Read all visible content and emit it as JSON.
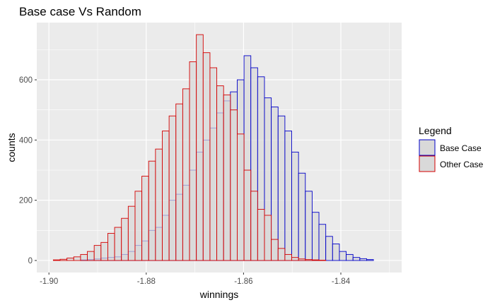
{
  "chart_data": {
    "type": "histogram",
    "title": "Base case Vs Random",
    "xlabel": "winnings",
    "ylabel": "counts",
    "xlim": [
      -1.9025,
      -1.8275
    ],
    "ylim": [
      -40,
      790
    ],
    "x_ticks": [
      -1.9,
      -1.88,
      -1.86,
      -1.84
    ],
    "x_tick_labels": [
      "-1.90",
      "-1.88",
      "-1.86",
      "-1.84"
    ],
    "y_ticks": [
      0,
      200,
      400,
      600
    ],
    "y_tick_labels": [
      "0",
      "200",
      "400",
      "600"
    ],
    "grid": true,
    "bin_width": 0.0014,
    "legend": {
      "title": "Legend",
      "position": "right",
      "entries": [
        {
          "label": "Base Case",
          "color": "#0000c8"
        },
        {
          "label": "Other Case",
          "color": "#d40000"
        }
      ]
    },
    "series": [
      {
        "name": "Base Case",
        "color": "#0000c8",
        "bin_starts": [
          -1.8935,
          -1.8921,
          -1.8907,
          -1.8893,
          -1.8879,
          -1.8865,
          -1.8851,
          -1.8837,
          -1.8823,
          -1.8809,
          -1.8795,
          -1.8781,
          -1.8767,
          -1.8753,
          -1.8739,
          -1.8725,
          -1.8711,
          -1.8697,
          -1.8683,
          -1.8669,
          -1.8655,
          -1.8641,
          -1.8627,
          -1.8613,
          -1.8599,
          -1.8585,
          -1.8571,
          -1.8557,
          -1.8543,
          -1.8529,
          -1.8515,
          -1.8501,
          -1.8487,
          -1.8473,
          -1.8459,
          -1.8445,
          -1.8431,
          -1.8417,
          -1.8403,
          -1.8389,
          -1.8375,
          -1.8361,
          -1.8347
        ],
        "counts": [
          2,
          3,
          5,
          8,
          10,
          12,
          20,
          30,
          50,
          65,
          100,
          110,
          150,
          200,
          220,
          250,
          300,
          360,
          400,
          440,
          490,
          530,
          560,
          600,
          680,
          640,
          610,
          540,
          510,
          480,
          430,
          360,
          290,
          230,
          160,
          120,
          80,
          55,
          30,
          20,
          10,
          6,
          3
        ]
      },
      {
        "name": "Other Case",
        "color": "#d40000",
        "bin_starts": [
          -1.8991,
          -1.8977,
          -1.8963,
          -1.8949,
          -1.8935,
          -1.8921,
          -1.8907,
          -1.8893,
          -1.8879,
          -1.8865,
          -1.8851,
          -1.8837,
          -1.8823,
          -1.8809,
          -1.8795,
          -1.8781,
          -1.8767,
          -1.8753,
          -1.8739,
          -1.8725,
          -1.8711,
          -1.8697,
          -1.8683,
          -1.8669,
          -1.8655,
          -1.8641,
          -1.8627,
          -1.8613,
          -1.8599,
          -1.8585,
          -1.8571,
          -1.8557,
          -1.8543,
          -1.8529,
          -1.8515,
          -1.8501,
          -1.8487,
          -1.8473,
          -1.8459,
          -1.8445
        ],
        "counts": [
          2,
          4,
          8,
          12,
          20,
          30,
          50,
          60,
          90,
          110,
          140,
          180,
          230,
          280,
          330,
          370,
          430,
          480,
          520,
          570,
          660,
          750,
          690,
          640,
          580,
          550,
          500,
          420,
          300,
          230,
          170,
          150,
          70,
          40,
          20,
          10,
          5,
          3,
          2,
          1
        ]
      }
    ]
  }
}
